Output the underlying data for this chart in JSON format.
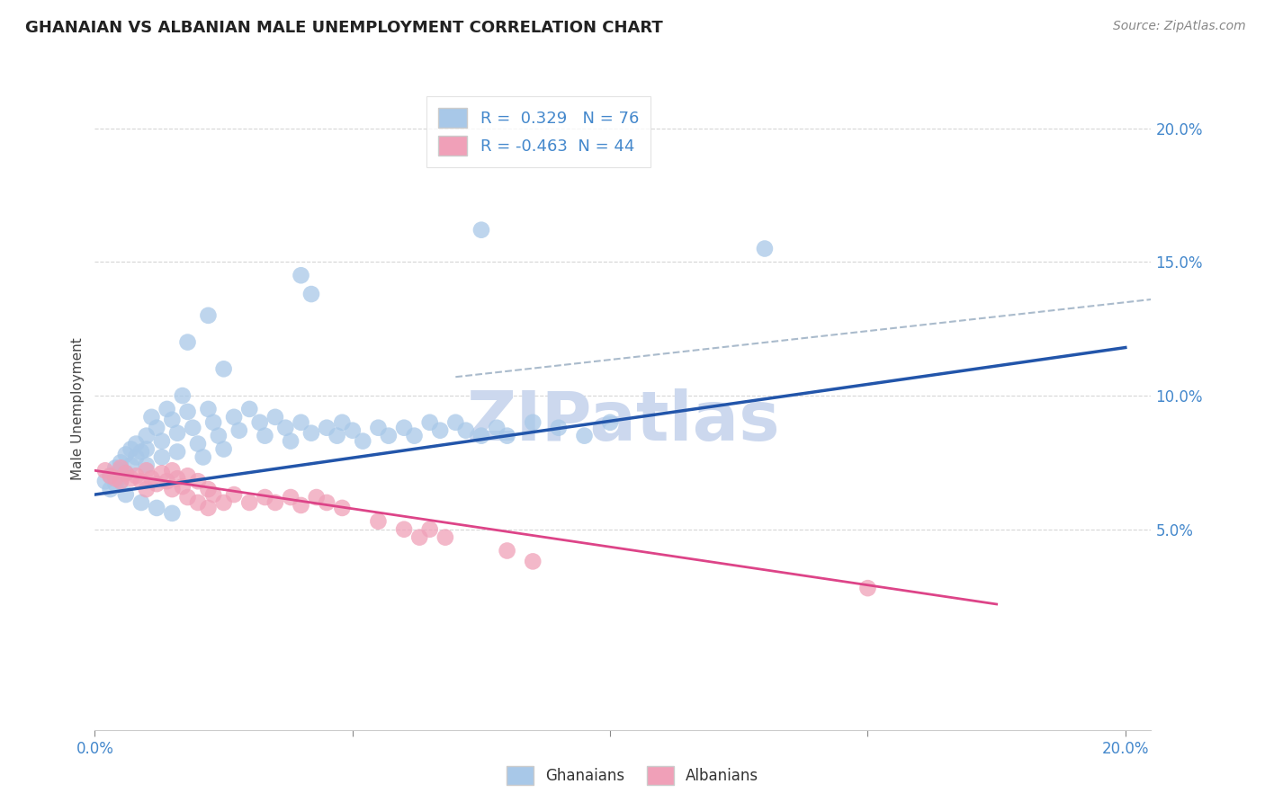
{
  "title": "GHANAIAN VS ALBANIAN MALE UNEMPLOYMENT CORRELATION CHART",
  "source": "Source: ZipAtlas.com",
  "ylabel": "Male Unemployment",
  "xlim": [
    0.0,
    0.205
  ],
  "ylim": [
    -0.025,
    0.215
  ],
  "ghanaian_R": 0.329,
  "ghanaian_N": 76,
  "albanian_R": -0.463,
  "albanian_N": 44,
  "ghanaian_color": "#a8c8e8",
  "albanian_color": "#f0a0b8",
  "ghanaian_line_color": "#2255aa",
  "albanian_line_color": "#dd4488",
  "dashed_line_color": "#aabbcc",
  "background_color": "#ffffff",
  "grid_color": "#cccccc",
  "axis_label_color": "#4488cc",
  "title_color": "#222222",
  "ghanaian_line": {
    "x0": 0.0,
    "y0": 0.063,
    "x1": 0.2,
    "y1": 0.118
  },
  "albanian_line": {
    "x0": 0.0,
    "y0": 0.072,
    "x1": 0.175,
    "y1": 0.022
  },
  "dashed_line": {
    "x0": 0.07,
    "y0": 0.107,
    "x1": 0.205,
    "y1": 0.136
  },
  "ghanaian_points": [
    [
      0.002,
      0.068
    ],
    [
      0.003,
      0.07
    ],
    [
      0.004,
      0.073
    ],
    [
      0.004,
      0.067
    ],
    [
      0.005,
      0.075
    ],
    [
      0.005,
      0.072
    ],
    [
      0.005,
      0.068
    ],
    [
      0.006,
      0.078
    ],
    [
      0.006,
      0.071
    ],
    [
      0.007,
      0.08
    ],
    [
      0.007,
      0.074
    ],
    [
      0.008,
      0.082
    ],
    [
      0.008,
      0.077
    ],
    [
      0.009,
      0.079
    ],
    [
      0.01,
      0.085
    ],
    [
      0.01,
      0.08
    ],
    [
      0.01,
      0.074
    ],
    [
      0.011,
      0.092
    ],
    [
      0.012,
      0.088
    ],
    [
      0.013,
      0.083
    ],
    [
      0.013,
      0.077
    ],
    [
      0.014,
      0.095
    ],
    [
      0.015,
      0.091
    ],
    [
      0.016,
      0.086
    ],
    [
      0.016,
      0.079
    ],
    [
      0.017,
      0.1
    ],
    [
      0.018,
      0.094
    ],
    [
      0.019,
      0.088
    ],
    [
      0.02,
      0.082
    ],
    [
      0.021,
      0.077
    ],
    [
      0.022,
      0.095
    ],
    [
      0.023,
      0.09
    ],
    [
      0.024,
      0.085
    ],
    [
      0.025,
      0.08
    ],
    [
      0.027,
      0.092
    ],
    [
      0.028,
      0.087
    ],
    [
      0.03,
      0.095
    ],
    [
      0.032,
      0.09
    ],
    [
      0.033,
      0.085
    ],
    [
      0.035,
      0.092
    ],
    [
      0.037,
      0.088
    ],
    [
      0.038,
      0.083
    ],
    [
      0.04,
      0.09
    ],
    [
      0.042,
      0.086
    ],
    [
      0.045,
      0.088
    ],
    [
      0.047,
      0.085
    ],
    [
      0.048,
      0.09
    ],
    [
      0.05,
      0.087
    ],
    [
      0.052,
      0.083
    ],
    [
      0.055,
      0.088
    ],
    [
      0.057,
      0.085
    ],
    [
      0.06,
      0.088
    ],
    [
      0.062,
      0.085
    ],
    [
      0.065,
      0.09
    ],
    [
      0.067,
      0.087
    ],
    [
      0.07,
      0.09
    ],
    [
      0.072,
      0.087
    ],
    [
      0.075,
      0.085
    ],
    [
      0.078,
      0.088
    ],
    [
      0.08,
      0.085
    ],
    [
      0.085,
      0.09
    ],
    [
      0.09,
      0.088
    ],
    [
      0.095,
      0.085
    ],
    [
      0.1,
      0.09
    ],
    [
      0.018,
      0.12
    ],
    [
      0.022,
      0.13
    ],
    [
      0.025,
      0.11
    ],
    [
      0.04,
      0.145
    ],
    [
      0.042,
      0.138
    ],
    [
      0.075,
      0.162
    ],
    [
      0.13,
      0.155
    ],
    [
      0.003,
      0.065
    ],
    [
      0.006,
      0.063
    ],
    [
      0.009,
      0.06
    ],
    [
      0.012,
      0.058
    ],
    [
      0.015,
      0.056
    ]
  ],
  "albanian_points": [
    [
      0.002,
      0.072
    ],
    [
      0.003,
      0.07
    ],
    [
      0.004,
      0.069
    ],
    [
      0.005,
      0.073
    ],
    [
      0.005,
      0.068
    ],
    [
      0.006,
      0.071
    ],
    [
      0.007,
      0.069
    ],
    [
      0.008,
      0.07
    ],
    [
      0.009,
      0.068
    ],
    [
      0.01,
      0.072
    ],
    [
      0.01,
      0.065
    ],
    [
      0.011,
      0.069
    ],
    [
      0.012,
      0.067
    ],
    [
      0.013,
      0.071
    ],
    [
      0.014,
      0.068
    ],
    [
      0.015,
      0.072
    ],
    [
      0.015,
      0.065
    ],
    [
      0.016,
      0.069
    ],
    [
      0.017,
      0.066
    ],
    [
      0.018,
      0.07
    ],
    [
      0.018,
      0.062
    ],
    [
      0.02,
      0.068
    ],
    [
      0.02,
      0.06
    ],
    [
      0.022,
      0.065
    ],
    [
      0.022,
      0.058
    ],
    [
      0.023,
      0.063
    ],
    [
      0.025,
      0.06
    ],
    [
      0.027,
      0.063
    ],
    [
      0.03,
      0.06
    ],
    [
      0.033,
      0.062
    ],
    [
      0.035,
      0.06
    ],
    [
      0.038,
      0.062
    ],
    [
      0.04,
      0.059
    ],
    [
      0.043,
      0.062
    ],
    [
      0.045,
      0.06
    ],
    [
      0.048,
      0.058
    ],
    [
      0.055,
      0.053
    ],
    [
      0.06,
      0.05
    ],
    [
      0.063,
      0.047
    ],
    [
      0.065,
      0.05
    ],
    [
      0.068,
      0.047
    ],
    [
      0.08,
      0.042
    ],
    [
      0.085,
      0.038
    ],
    [
      0.15,
      0.028
    ]
  ]
}
